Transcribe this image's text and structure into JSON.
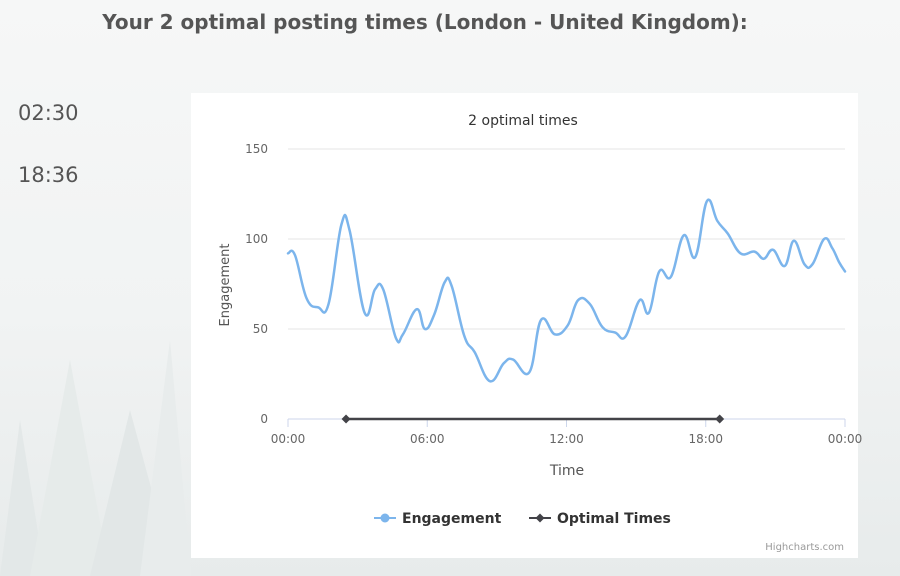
{
  "heading": "Your 2 optimal posting times (London - United Kingdom):",
  "optimal_times": [
    "02:30",
    "18:36"
  ],
  "colors": {
    "engagement": "#7cb5ec",
    "optimal": "#434348",
    "text": "#555555"
  },
  "chart_data": {
    "type": "line",
    "title": "2 optimal times",
    "xlabel": "Time",
    "ylabel": "Engagement",
    "xlim": [
      0,
      24
    ],
    "ylim": [
      0,
      150
    ],
    "x_ticks": [
      "00:00",
      "06:00",
      "12:00",
      "18:00",
      "00:00"
    ],
    "x_tick_values": [
      0,
      6,
      12,
      18,
      24
    ],
    "y_ticks": [
      0,
      50,
      100,
      150
    ],
    "grid": true,
    "legend_position": "bottom-center",
    "credits": "Highcharts.com",
    "series": [
      {
        "name": "Engagement",
        "x": [
          0,
          0.3,
          0.8,
          1.3,
          1.75,
          2.3,
          2.65,
          3.3,
          3.75,
          4.1,
          4.65,
          4.95,
          5.55,
          5.9,
          6.3,
          6.75,
          7.05,
          7.6,
          8.05,
          8.7,
          9.3,
          9.7,
          10.4,
          10.9,
          11.5,
          12.05,
          12.5,
          13.0,
          13.55,
          14.1,
          14.55,
          15.15,
          15.55,
          16.0,
          16.5,
          17.05,
          17.55,
          18.05,
          18.5,
          18.95,
          19.5,
          20.1,
          20.5,
          20.9,
          21.4,
          21.8,
          22.25,
          22.6,
          23.1,
          23.45,
          23.75,
          24.0
        ],
        "values": [
          92,
          91,
          67,
          62,
          64,
          108,
          105,
          59,
          72,
          72,
          45,
          47,
          61,
          50,
          58,
          76,
          74,
          46,
          37,
          21,
          31,
          33,
          26,
          55,
          47,
          52,
          66,
          64,
          51,
          48,
          46,
          66,
          59,
          82,
          79,
          102,
          90,
          121,
          110,
          103,
          92,
          93,
          89,
          94,
          85,
          99,
          86,
          86,
          100,
          95,
          87,
          82
        ]
      },
      {
        "name": "Optimal Times",
        "x": [
          2.5,
          18.6
        ],
        "values": [
          0,
          0
        ]
      }
    ]
  }
}
